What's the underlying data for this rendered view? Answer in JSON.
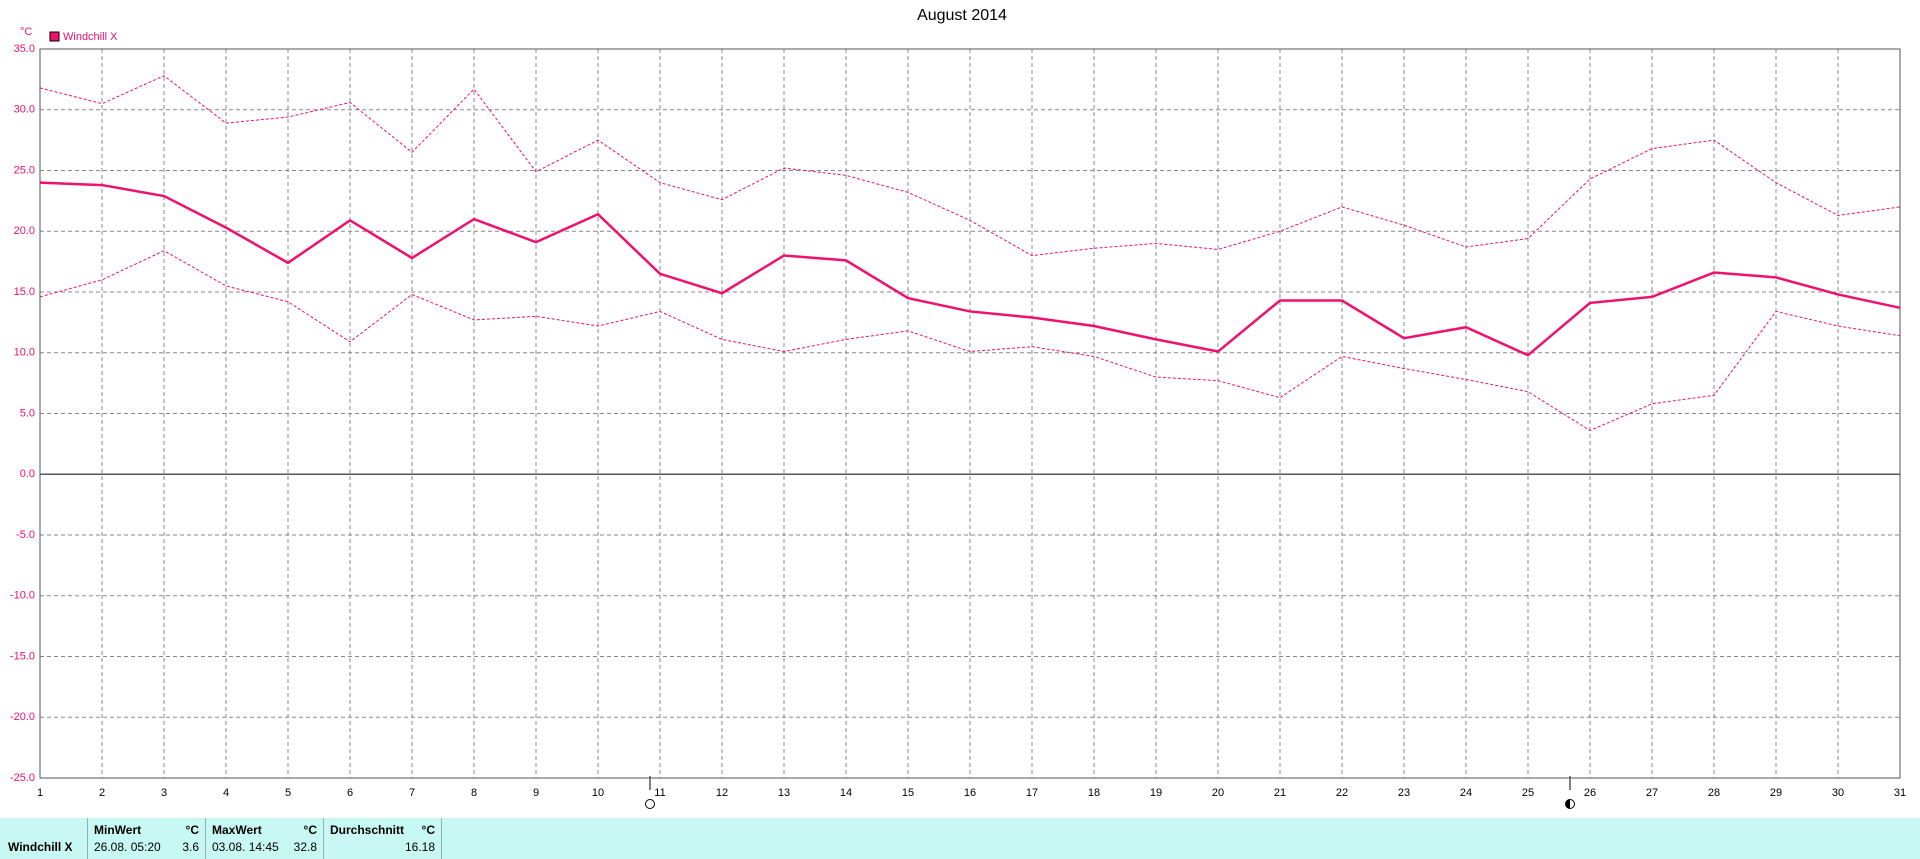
{
  "chart_data": {
    "type": "line",
    "title": "August 2014",
    "y_unit": "°C",
    "x": [
      1,
      2,
      3,
      4,
      5,
      6,
      7,
      8,
      9,
      10,
      11,
      12,
      13,
      14,
      15,
      16,
      17,
      18,
      19,
      20,
      21,
      22,
      23,
      24,
      25,
      26,
      27,
      28,
      29,
      30,
      31
    ],
    "xlim": [
      1,
      31
    ],
    "xticks": [
      1,
      2,
      3,
      4,
      5,
      6,
      7,
      8,
      9,
      10,
      11,
      12,
      13,
      14,
      15,
      16,
      17,
      18,
      19,
      20,
      21,
      22,
      23,
      24,
      25,
      26,
      27,
      28,
      29,
      30,
      31
    ],
    "ylim": [
      -25,
      35
    ],
    "yticks": [
      {
        "value": 35,
        "label": "35.0"
      },
      {
        "value": 30,
        "label": "30.0"
      },
      {
        "value": 25,
        "label": "25.0"
      },
      {
        "value": 20,
        "label": "20.0"
      },
      {
        "value": 15,
        "label": "15.0"
      },
      {
        "value": 10,
        "label": "10.0"
      },
      {
        "value": 5,
        "label": "5.0"
      },
      {
        "value": 0,
        "label": "0.0"
      },
      {
        "value": -5,
        "label": "-5.0"
      },
      {
        "value": -10,
        "label": "-10.0"
      },
      {
        "value": -15,
        "label": "-15.0"
      },
      {
        "value": -20,
        "label": "-20.0"
      },
      {
        "value": -25,
        "label": "-25.0"
      }
    ],
    "grid": true,
    "legend": "top-left",
    "series": [
      {
        "name": "Windchill X",
        "color": "#f0106e",
        "style": "solid",
        "values": [
          24.0,
          23.8,
          22.9,
          20.3,
          17.4,
          20.9,
          17.8,
          21.0,
          19.1,
          21.4,
          16.5,
          14.9,
          18.0,
          17.6,
          14.5,
          13.4,
          12.9,
          12.2,
          11.1,
          10.1,
          14.3,
          14.3,
          11.2,
          12.1,
          9.8,
          14.1,
          14.6,
          16.6,
          16.2,
          14.8,
          13.7
        ]
      },
      {
        "color": "#f0106e",
        "style": "dotted",
        "values": [
          31.8,
          30.5,
          32.8,
          28.9,
          29.4,
          30.6,
          26.5,
          31.7,
          24.9,
          27.5,
          24.0,
          22.6,
          25.2,
          24.6,
          23.2,
          20.9,
          18.0,
          18.6,
          19.0,
          18.5,
          20.0,
          22.0,
          20.5,
          18.7,
          19.4,
          24.3,
          26.8,
          27.5,
          24.0,
          21.3,
          22.0
        ]
      },
      {
        "color": "#f0106e",
        "style": "dotted",
        "values": [
          14.6,
          16.0,
          18.4,
          15.5,
          14.2,
          10.9,
          14.8,
          12.7,
          13.0,
          12.2,
          13.4,
          11.1,
          10.1,
          11.1,
          11.8,
          10.1,
          10.5,
          9.7,
          8.0,
          7.7,
          6.3,
          9.7,
          8.7,
          7.8,
          6.8,
          3.6,
          5.8,
          6.5,
          13.4,
          12.2,
          11.4
        ]
      }
    ]
  },
  "table": {
    "row_label": "Windchill X",
    "columns": [
      {
        "header": "MinWert",
        "unit": "°C",
        "date": "26.08.  05:20",
        "value": "3.6"
      },
      {
        "header": "MaxWert",
        "unit": "°C",
        "date": "03.08.  14:45",
        "value": "32.8"
      },
      {
        "header": "Durchschnitt",
        "unit": "°C",
        "date": "",
        "value": "16.18"
      }
    ]
  }
}
